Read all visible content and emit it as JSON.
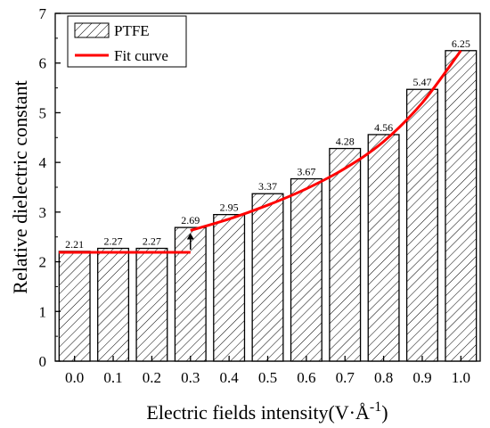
{
  "chart_data": {
    "type": "bar",
    "title": "",
    "xlabel": "Electric fields intensity(V·Å",
    "xlabel_sup": "-1",
    "xlabel_close": ")",
    "ylabel": "Relative dielectric constant",
    "categories": [
      "0.0",
      "0.1",
      "0.2",
      "0.3",
      "0.4",
      "0.5",
      "0.6",
      "0.7",
      "0.8",
      "0.9",
      "1.0"
    ],
    "series": [
      {
        "name": "PTFE",
        "values": [
          2.21,
          2.27,
          2.27,
          2.69,
          2.95,
          3.37,
          3.67,
          4.28,
          4.56,
          5.47,
          6.25
        ],
        "labels": [
          "2.21",
          "2.27",
          "2.27",
          "2.69",
          "2.95",
          "3.37",
          "3.67",
          "4.28",
          "4.56",
          "5.47",
          "6.25"
        ],
        "fill": "hatched"
      }
    ],
    "fit_curve": {
      "name": "Fit curve",
      "color": "#ff0000",
      "flat_segment": {
        "x": [
          0.0,
          0.3
        ],
        "y": 2.19
      },
      "curve_segment": {
        "x": [
          0.3,
          0.4,
          0.5,
          0.6,
          0.7,
          0.8,
          0.9,
          1.0
        ],
        "y": [
          2.63,
          2.86,
          3.14,
          3.47,
          3.88,
          4.42,
          5.2,
          6.25
        ]
      },
      "jump_arrow_at_x": 0.3
    },
    "ylim": [
      0,
      7
    ],
    "yticks": [
      "0",
      "1",
      "2",
      "3",
      "4",
      "5",
      "6",
      "7"
    ],
    "grid": false,
    "legend_position": "top-left"
  }
}
